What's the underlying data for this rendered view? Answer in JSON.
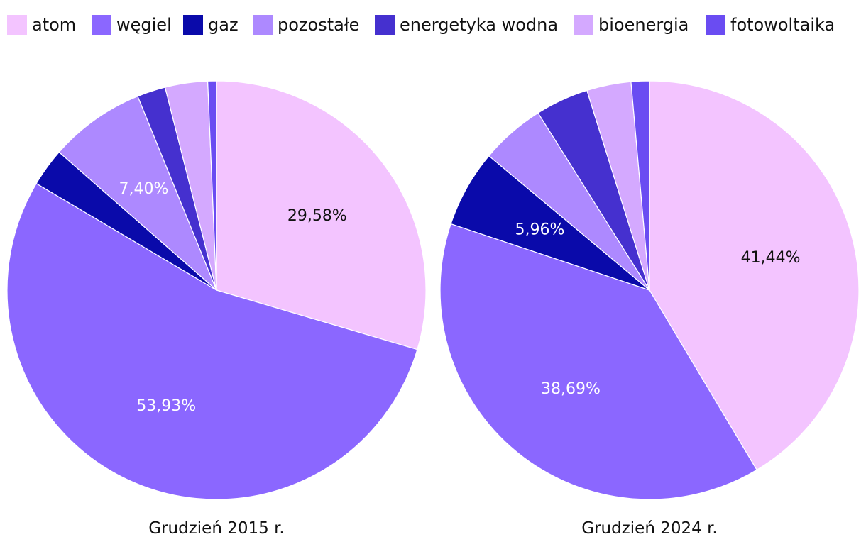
{
  "legend": [
    {
      "label": "atom",
      "color": "#f3c4ff"
    },
    {
      "label": "węgiel",
      "color": "#8b67ff"
    },
    {
      "label": "gaz",
      "color": "#0a0aaa"
    },
    {
      "label": "pozostałe",
      "color": "#ad89ff"
    },
    {
      "label": "energetyka wodna",
      "color": "#4530cf"
    },
    {
      "label": "bioenergia",
      "color": "#d4a9ff"
    },
    {
      "label": "fotowoltaika",
      "color": "#6a4cf2"
    }
  ],
  "chart_data": [
    {
      "type": "pie",
      "title": "Grudzień 2015 r.",
      "categories": [
        "atom",
        "węgiel",
        "gaz",
        "pozostałe",
        "energetyka wodna",
        "bioenergia",
        "fotowoltaika"
      ],
      "values": [
        29.58,
        53.93,
        2.95,
        7.4,
        2.19,
        3.28,
        0.67
      ],
      "data_labels": [
        {
          "category": "atom",
          "text": "29,58%",
          "color": "#111111"
        },
        {
          "category": "węgiel",
          "text": "53,93%",
          "color": "#ffffff"
        },
        {
          "category": "pozostałe",
          "text": "7,40%",
          "color": "#ffffff"
        }
      ]
    },
    {
      "type": "pie",
      "title": "Grudzień 2024 r.",
      "categories": [
        "atom",
        "węgiel",
        "gaz",
        "pozostałe",
        "energetyka wodna",
        "bioenergia",
        "fotowoltaika"
      ],
      "values": [
        41.44,
        38.69,
        5.96,
        4.98,
        4.1,
        3.42,
        1.41
      ],
      "data_labels": [
        {
          "category": "atom",
          "text": "41,44%",
          "color": "#111111"
        },
        {
          "category": "węgiel",
          "text": "38,69%",
          "color": "#ffffff"
        },
        {
          "category": "gaz",
          "text": "5,96%",
          "color": "#ffffff"
        }
      ]
    }
  ]
}
